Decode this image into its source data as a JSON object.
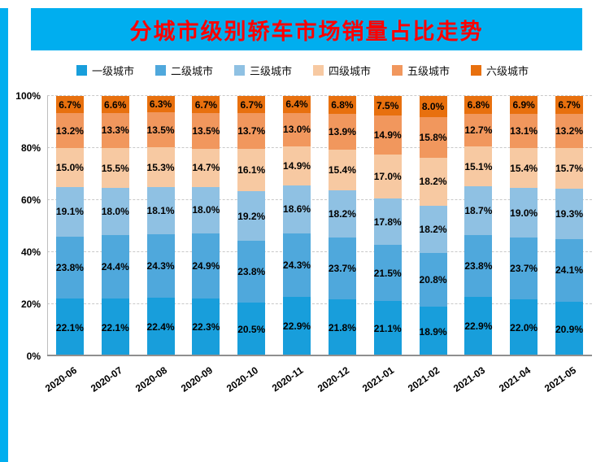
{
  "title": "分城市级别轿车市场销量占比走势",
  "banner_color": "#00AEEF",
  "title_color": "#FE0000",
  "chart_data": {
    "type": "stacked-bar-100",
    "title": "分城市级别轿车市场销量占比走势",
    "categories": [
      "2020-06",
      "2020-07",
      "2020-08",
      "2020-09",
      "2020-10",
      "2020-11",
      "2020-12",
      "2021-01",
      "2021-02",
      "2021-03",
      "2021-04",
      "2021-05"
    ],
    "series": [
      {
        "name": "一级城市",
        "color": "#189EDB",
        "values": [
          22.1,
          22.1,
          22.4,
          22.3,
          20.5,
          22.9,
          21.8,
          21.1,
          18.9,
          22.9,
          22.0,
          20.9
        ]
      },
      {
        "name": "二级城市",
        "color": "#4FA8DC",
        "values": [
          23.8,
          24.4,
          24.3,
          24.9,
          23.8,
          24.3,
          23.7,
          21.5,
          20.8,
          23.8,
          23.7,
          24.1
        ]
      },
      {
        "name": "三级城市",
        "color": "#8FC1E3",
        "values": [
          19.1,
          18.0,
          18.1,
          18.0,
          19.2,
          18.6,
          18.2,
          17.8,
          18.2,
          18.7,
          19.0,
          19.3
        ]
      },
      {
        "name": "四级城市",
        "color": "#F7C9A2",
        "values": [
          15.0,
          15.5,
          15.3,
          14.7,
          16.1,
          14.9,
          15.4,
          17.0,
          18.2,
          15.1,
          15.4,
          15.7
        ]
      },
      {
        "name": "五级城市",
        "color": "#F1975D",
        "values": [
          13.2,
          13.3,
          13.5,
          13.5,
          13.7,
          13.0,
          13.9,
          14.9,
          15.8,
          12.7,
          13.1,
          13.2
        ]
      },
      {
        "name": "六级城市",
        "color": "#E8700E",
        "values": [
          6.7,
          6.6,
          6.3,
          6.7,
          6.7,
          6.4,
          6.8,
          7.5,
          8.0,
          6.8,
          6.9,
          6.7
        ]
      }
    ],
    "y_ticks": [
      0,
      20,
      40,
      60,
      80,
      100
    ],
    "y_tick_labels": [
      "0%",
      "20%",
      "40%",
      "60%",
      "80%",
      "100%"
    ],
    "ylim": [
      0,
      100
    ],
    "grid": "dashed-horizontal",
    "legend_position": "top",
    "value_label_format": "0.0%"
  }
}
